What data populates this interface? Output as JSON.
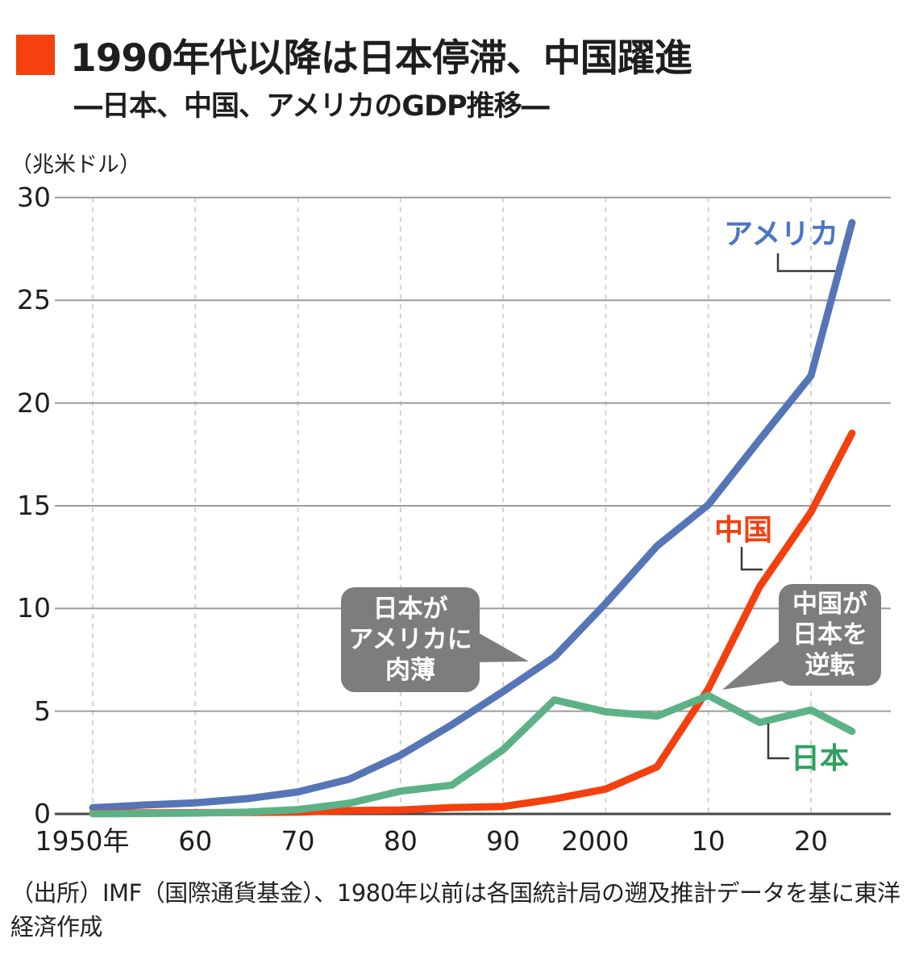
{
  "header": {
    "title": "1990年代以降は日本停滞、中国躍進",
    "subtitle": "―日本、中国、アメリカのGDP推移―",
    "accent_color": "#f5410d"
  },
  "chart_data": {
    "type": "line",
    "title": "日本、中国、アメリカのGDP推移",
    "xlabel": "",
    "ylabel": "（兆米ドル）",
    "xlim": [
      1950,
      2024
    ],
    "ylim": [
      0,
      30
    ],
    "grid": "horizontal solid, vertical dashed per decade",
    "legend_position": "direct line labels",
    "x_ticks": [
      {
        "year": 1950,
        "label": "1950年"
      },
      {
        "year": 1960,
        "label": "60"
      },
      {
        "year": 1970,
        "label": "70"
      },
      {
        "year": 1980,
        "label": "80"
      },
      {
        "year": 1990,
        "label": "90"
      },
      {
        "year": 2000,
        "label": "2000"
      },
      {
        "year": 2010,
        "label": "10"
      },
      {
        "year": 2020,
        "label": "20"
      }
    ],
    "y_ticks": [
      30,
      25,
      20,
      15,
      10,
      5,
      0
    ],
    "series": [
      {
        "key": "usa",
        "name": "アメリカ",
        "color": "#5675b7",
        "label_color": "#4c74c6",
        "x": [
          1950,
          1955,
          1960,
          1965,
          1970,
          1975,
          1980,
          1985,
          1990,
          1995,
          2000,
          2005,
          2010,
          2015,
          2020,
          2024
        ],
        "values": [
          0.3,
          0.43,
          0.54,
          0.74,
          1.07,
          1.69,
          2.86,
          4.34,
          5.96,
          7.64,
          10.25,
          13.04,
          15.05,
          18.21,
          21.32,
          28.78
        ]
      },
      {
        "key": "china",
        "name": "中国",
        "color": "#f4400e",
        "label_color": "#f4400e",
        "x": [
          1950,
          1955,
          1960,
          1965,
          1970,
          1975,
          1980,
          1985,
          1990,
          1995,
          2000,
          2005,
          2010,
          2015,
          2020,
          2024
        ],
        "values": [
          0.03,
          0.05,
          0.06,
          0.07,
          0.09,
          0.16,
          0.19,
          0.31,
          0.36,
          0.73,
          1.21,
          2.29,
          6.09,
          11.06,
          14.69,
          18.53
        ]
      },
      {
        "key": "japan",
        "name": "日本",
        "color": "#5cb286",
        "label_color": "#2ea15f",
        "x": [
          1950,
          1955,
          1960,
          1965,
          1970,
          1975,
          1980,
          1985,
          1990,
          1995,
          2000,
          2005,
          2010,
          2015,
          2020,
          2024
        ],
        "values": [
          0.01,
          0.02,
          0.04,
          0.09,
          0.21,
          0.52,
          1.11,
          1.4,
          3.13,
          5.55,
          4.97,
          4.76,
          5.76,
          4.45,
          5.06,
          4.02
        ]
      }
    ],
    "annotations": [
      {
        "text": "日本が\nアメリカに\n肉薄",
        "points_to": "USA line around 1992"
      },
      {
        "text": "中国が\n日本を\n逆転",
        "points_to": "China/Japan crossing around 2010"
      }
    ],
    "bubble_color": "#7d7d7d",
    "grid_color": "#9b9b9b",
    "grid_dash_color": "#d2d2d2",
    "axis_color": "#474747"
  },
  "source": "（出所）IMF（国際通貨基金）、1980年以前は各国統計局の遡及推計データを基に東洋経済作成"
}
